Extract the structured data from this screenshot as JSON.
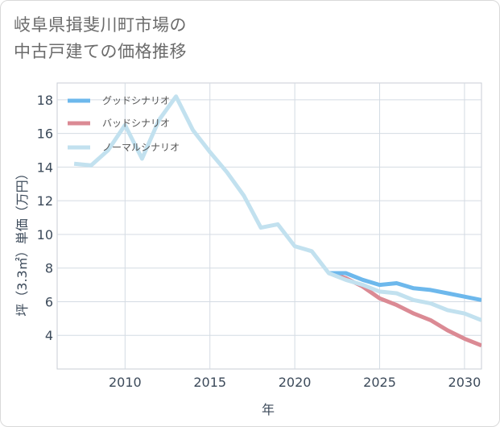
{
  "title_lines": [
    "岐阜県揖斐川町市場の",
    "中古戸建ての価格推移"
  ],
  "chart_data": {
    "type": "line",
    "xlabel": "年",
    "ylabel": "坪（3.3㎡）単価（万円）",
    "xlim": [
      2006,
      2031
    ],
    "ylim": [
      2,
      19
    ],
    "xticks": [
      2010,
      2015,
      2020,
      2025,
      2030
    ],
    "yticks": [
      4,
      6,
      8,
      10,
      12,
      14,
      16,
      18
    ],
    "grid": true,
    "legend_position": "top-left",
    "series": [
      {
        "name": "グッドシナリオ",
        "color": "#6db8ec",
        "x": [
          2022,
          2023,
          2024,
          2025,
          2026,
          2027,
          2028,
          2029,
          2030,
          2031
        ],
        "y": [
          7.7,
          7.7,
          7.3,
          7.0,
          7.1,
          6.8,
          6.7,
          6.5,
          6.3,
          6.1
        ]
      },
      {
        "name": "バッドシナリオ",
        "color": "#db8a94",
        "x": [
          2022,
          2023,
          2024,
          2025,
          2026,
          2027,
          2028,
          2029,
          2030,
          2031
        ],
        "y": [
          7.7,
          7.4,
          6.9,
          6.2,
          5.8,
          5.3,
          4.9,
          4.3,
          3.8,
          3.4
        ]
      },
      {
        "name": "ノーマルシナリオ",
        "color": "#c2e1ef",
        "x": [
          2007,
          2008,
          2009,
          2010,
          2011,
          2012,
          2013,
          2014,
          2015,
          2016,
          2017,
          2018,
          2019,
          2020,
          2021,
          2022,
          2023,
          2024,
          2025,
          2026,
          2027,
          2028,
          2029,
          2030,
          2031
        ],
        "y": [
          14.2,
          14.1,
          15.0,
          16.5,
          14.5,
          16.8,
          18.2,
          16.2,
          14.9,
          13.7,
          12.3,
          10.4,
          10.6,
          9.3,
          9.0,
          7.7,
          7.3,
          7.0,
          6.6,
          6.5,
          6.1,
          5.9,
          5.5,
          5.3,
          4.9
        ]
      }
    ]
  }
}
